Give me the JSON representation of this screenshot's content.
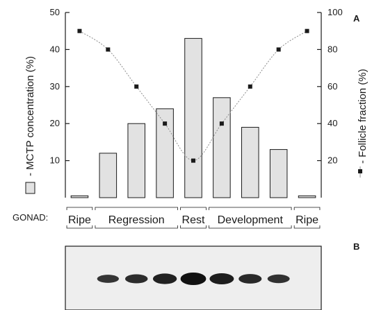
{
  "chart_data": {
    "type": "bar",
    "panel_labels": {
      "a": "A",
      "b": "B"
    },
    "ylabel_left": "- MCTP concentration (%)",
    "ylabel_right": "- Follicle fraction (%)",
    "ylim_left": [
      0,
      50
    ],
    "ylim_right": [
      0,
      100
    ],
    "yticks_left": [
      "10",
      "20",
      "30",
      "40",
      "50"
    ],
    "yticks_right": [
      "20",
      "40",
      "60",
      "80",
      "100"
    ],
    "bar_color": "#e2e2e2",
    "line_color": "#8c8c8c",
    "series": [
      {
        "name": "MCTP concentration",
        "axis": "left",
        "type": "bar",
        "values": [
          0.5,
          12,
          20,
          24,
          43,
          27,
          19,
          13,
          0.5
        ]
      },
      {
        "name": "Follicle fraction",
        "axis": "right",
        "type": "line",
        "values": [
          90,
          80,
          60,
          40,
          20,
          40,
          60,
          80,
          90
        ]
      }
    ],
    "band_intensity": [
      0,
      0.55,
      0.65,
      0.8,
      1.0,
      0.85,
      0.7,
      0.6,
      0
    ],
    "gonad_label": "GONAD:",
    "stages": [
      {
        "label": "Ripe",
        "from": 0,
        "to": 0
      },
      {
        "label": "Regression",
        "from": 1,
        "to": 3
      },
      {
        "label": "Rest",
        "from": 4,
        "to": 4
      },
      {
        "label": "Development",
        "from": 5,
        "to": 7
      },
      {
        "label": "Ripe",
        "from": 8,
        "to": 8
      }
    ]
  }
}
